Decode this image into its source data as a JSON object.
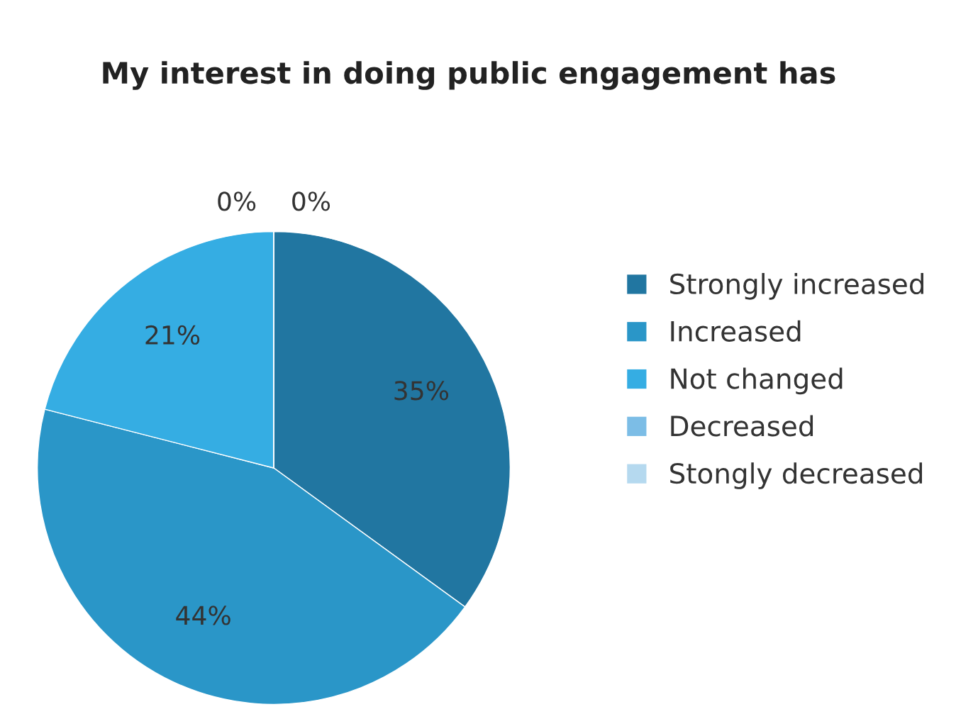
{
  "chart_data": {
    "type": "pie",
    "title": "My interest in doing public engagement has",
    "categories": [
      "Strongly increased",
      "Increased",
      "Not changed",
      "Decreased",
      "Stongly decreased"
    ],
    "values": [
      35,
      44,
      21,
      0,
      0
    ],
    "colors": [
      "#2176a1",
      "#2a96c8",
      "#35ade3",
      "#7cbde6",
      "#b5d9ef"
    ],
    "value_labels": [
      "35%",
      "44%",
      "21%",
      "0%",
      "0%"
    ],
    "legend": "right"
  }
}
